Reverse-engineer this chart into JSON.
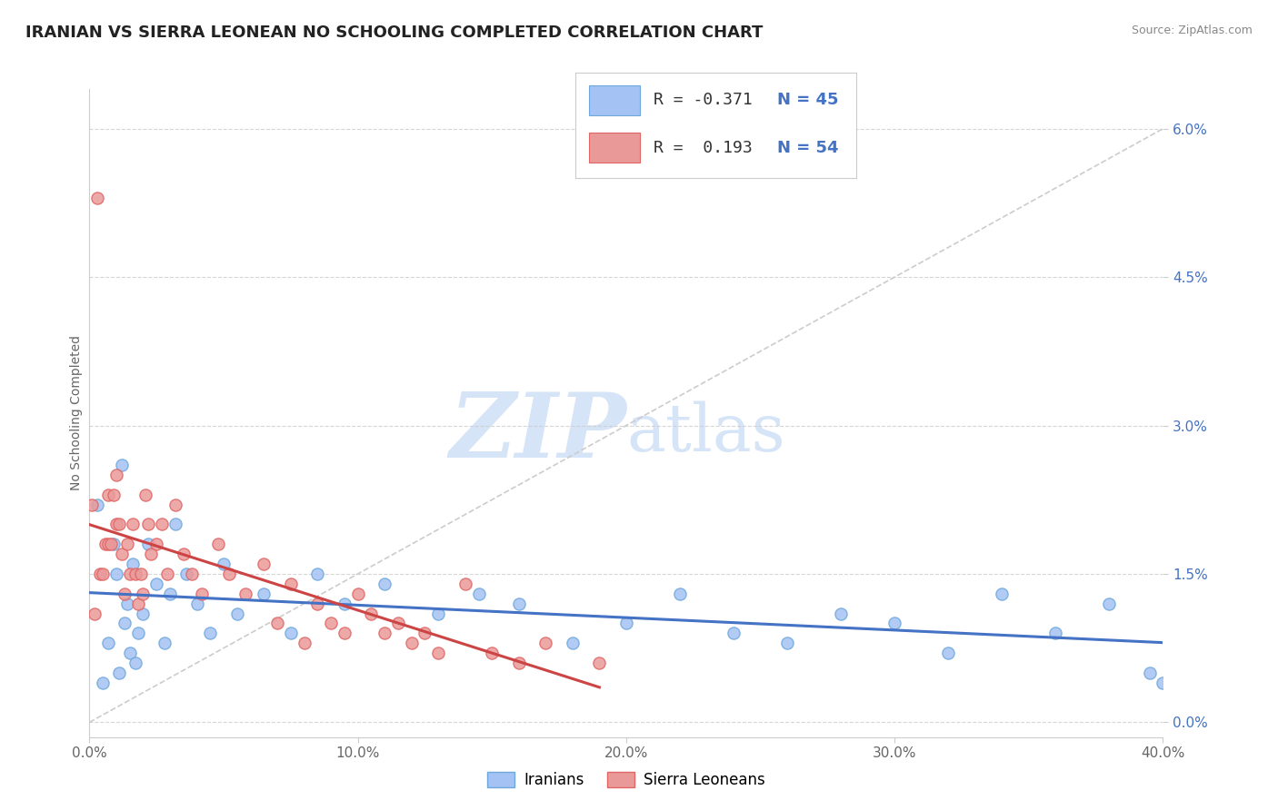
{
  "title": "IRANIAN VS SIERRA LEONEAN NO SCHOOLING COMPLETED CORRELATION CHART",
  "source": "Source: ZipAtlas.com",
  "xlabel_vals": [
    0.0,
    10.0,
    20.0,
    30.0,
    40.0
  ],
  "ylabel_vals": [
    0.0,
    1.5,
    3.0,
    4.5,
    6.0
  ],
  "xmin": 0.0,
  "xmax": 40.0,
  "ymin": -0.15,
  "ymax": 6.4,
  "iranian_fill_color": "#a4c2f4",
  "iranian_edge_color": "#6fa8dc",
  "sierra_fill_color": "#ea9999",
  "sierra_edge_color": "#e06666",
  "iranian_line_color": "#4472c4",
  "sierra_line_color": "#cc4444",
  "ref_line_color": "#cccccc",
  "watermark_color": "#d6e4f7",
  "background_color": "#ffffff",
  "grid_color": "#cccccc",
  "ylabel_color": "#4472c4",
  "tick_color": "#666666",
  "iranians_x": [
    0.3,
    0.5,
    0.7,
    0.9,
    1.0,
    1.1,
    1.2,
    1.3,
    1.4,
    1.5,
    1.6,
    1.7,
    1.8,
    2.0,
    2.2,
    2.5,
    2.8,
    3.0,
    3.2,
    3.6,
    4.0,
    4.5,
    5.0,
    5.5,
    6.5,
    7.5,
    8.5,
    9.5,
    11.0,
    13.0,
    14.5,
    16.0,
    18.0,
    20.0,
    22.0,
    24.0,
    26.0,
    28.0,
    30.0,
    32.0,
    34.0,
    36.0,
    38.0,
    39.5,
    40.0
  ],
  "iranians_y": [
    2.2,
    0.4,
    0.8,
    1.8,
    1.5,
    0.5,
    2.6,
    1.0,
    1.2,
    0.7,
    1.6,
    0.6,
    0.9,
    1.1,
    1.8,
    1.4,
    0.8,
    1.3,
    2.0,
    1.5,
    1.2,
    0.9,
    1.6,
    1.1,
    1.3,
    0.9,
    1.5,
    1.2,
    1.4,
    1.1,
    1.3,
    1.2,
    0.8,
    1.0,
    1.3,
    0.9,
    0.8,
    1.1,
    1.0,
    0.7,
    1.3,
    0.9,
    1.2,
    0.5,
    0.4
  ],
  "sierra_x": [
    0.1,
    0.2,
    0.3,
    0.4,
    0.5,
    0.6,
    0.7,
    0.7,
    0.8,
    0.9,
    1.0,
    1.0,
    1.1,
    1.2,
    1.3,
    1.4,
    1.5,
    1.6,
    1.7,
    1.8,
    1.9,
    2.0,
    2.1,
    2.2,
    2.3,
    2.5,
    2.7,
    2.9,
    3.2,
    3.5,
    3.8,
    4.2,
    4.8,
    5.2,
    5.8,
    6.5,
    7.0,
    7.5,
    8.0,
    8.5,
    9.0,
    9.5,
    10.0,
    10.5,
    11.0,
    11.5,
    12.0,
    12.5,
    13.0,
    14.0,
    15.0,
    16.0,
    17.0,
    19.0
  ],
  "sierra_y": [
    2.2,
    1.1,
    5.3,
    1.5,
    1.5,
    1.8,
    1.8,
    2.3,
    1.8,
    2.3,
    2.0,
    2.5,
    2.0,
    1.7,
    1.3,
    1.8,
    1.5,
    2.0,
    1.5,
    1.2,
    1.5,
    1.3,
    2.3,
    2.0,
    1.7,
    1.8,
    2.0,
    1.5,
    2.2,
    1.7,
    1.5,
    1.3,
    1.8,
    1.5,
    1.3,
    1.6,
    1.0,
    1.4,
    0.8,
    1.2,
    1.0,
    0.9,
    1.3,
    1.1,
    0.9,
    1.0,
    0.8,
    0.9,
    0.7,
    1.4,
    0.7,
    0.6,
    0.8,
    0.6
  ],
  "title_fontsize": 13,
  "tick_fontsize": 11,
  "legend_fontsize": 14,
  "watermark_fontsize": 72
}
